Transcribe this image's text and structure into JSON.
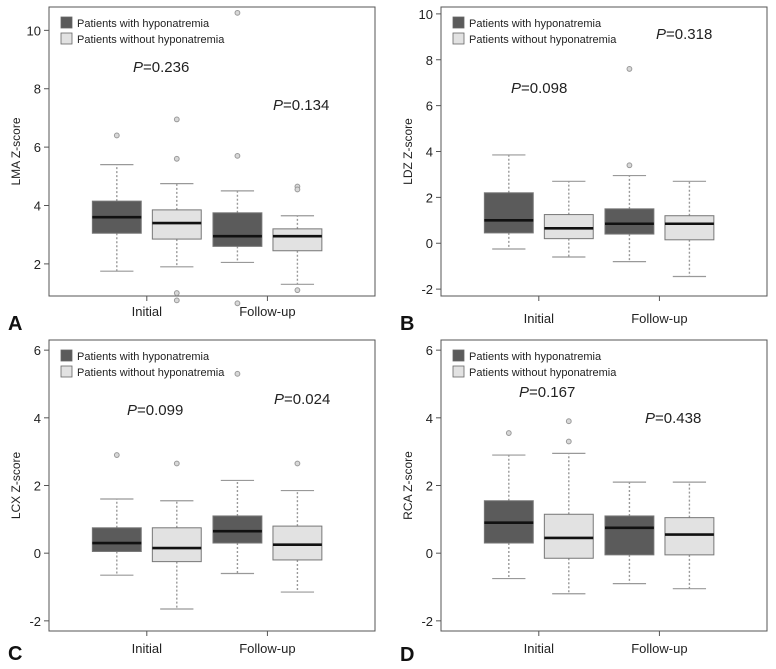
{
  "figure": {
    "colors": {
      "with": "#5b5b5b",
      "without": "#e2e2e2",
      "whisker": "#999999",
      "outlier": "#9a9a9a",
      "frame": "#555555"
    }
  },
  "chart_data": [
    {
      "id": "A",
      "panel_label": "A",
      "type": "boxplot",
      "ylabel": "LMA Z-score",
      "ylim": [
        0.9,
        10.8
      ],
      "yticks": [
        2,
        4,
        6,
        8,
        10
      ],
      "categories": [
        "Initial",
        "Follow-up"
      ],
      "legend": [
        "Patients with hyponatremia",
        "Patients without hyponatremia"
      ],
      "p_labels": [
        {
          "italic": "P",
          "rest": "=0.236"
        },
        {
          "italic": "P",
          "rest": "=0.134"
        }
      ],
      "series": [
        {
          "name": "Patients with hyponatremia",
          "boxes": [
            {
              "min": 1.75,
              "q1": 3.05,
              "median": 3.6,
              "q3": 4.15,
              "max": 5.4,
              "outliers": [
                6.4
              ]
            },
            {
              "min": 2.05,
              "q1": 2.6,
              "median": 2.95,
              "q3": 3.75,
              "max": 4.5,
              "outliers": [
                5.7,
                0.65,
                10.6
              ]
            }
          ]
        },
        {
          "name": "Patients without hyponatremia",
          "boxes": [
            {
              "min": 1.9,
              "q1": 2.85,
              "median": 3.4,
              "q3": 3.85,
              "max": 4.75,
              "outliers": [
                5.6,
                6.95,
                1.0,
                0.75
              ]
            },
            {
              "min": 1.3,
              "q1": 2.45,
              "median": 2.95,
              "q3": 3.2,
              "max": 3.65,
              "outliers": [
                4.65,
                4.55,
                1.1
              ]
            }
          ]
        }
      ]
    },
    {
      "id": "B",
      "panel_label": "B",
      "type": "boxplot",
      "ylabel": "LDZ Z-score",
      "ylim": [
        -2.3,
        10.3
      ],
      "yticks": [
        -2,
        0,
        2,
        4,
        6,
        8,
        10
      ],
      "categories": [
        "Initial",
        "Follow-up"
      ],
      "legend": [
        "Patients with hyponatremia",
        "Patients without hyponatremia"
      ],
      "p_labels": [
        {
          "italic": "P",
          "rest": "=0.098"
        },
        {
          "italic": "P",
          "rest": "=0.318"
        }
      ],
      "series": [
        {
          "name": "Patients with hyponatremia",
          "boxes": [
            {
              "min": -0.25,
              "q1": 0.45,
              "median": 1.0,
              "q3": 2.2,
              "max": 3.85,
              "outliers": []
            },
            {
              "min": -0.8,
              "q1": 0.4,
              "median": 0.85,
              "q3": 1.5,
              "max": 2.95,
              "outliers": [
                3.4,
                7.6
              ]
            }
          ]
        },
        {
          "name": "Patients without hyponatremia",
          "boxes": [
            {
              "min": -0.6,
              "q1": 0.2,
              "median": 0.65,
              "q3": 1.25,
              "max": 2.7,
              "outliers": []
            },
            {
              "min": -1.45,
              "q1": 0.15,
              "median": 0.85,
              "q3": 1.2,
              "max": 2.7,
              "outliers": []
            }
          ]
        }
      ]
    },
    {
      "id": "C",
      "panel_label": "C",
      "type": "boxplot",
      "ylabel": "LCX Z-score",
      "ylim": [
        -2.3,
        6.3
      ],
      "yticks": [
        -2,
        0,
        2,
        4,
        6
      ],
      "categories": [
        "Initial",
        "Follow-up"
      ],
      "legend": [
        "Patients with hyponatremia",
        "Patients without hyponatremia"
      ],
      "p_labels": [
        {
          "italic": "P",
          "rest": "=0.099"
        },
        {
          "italic": "P",
          "rest": "=0.024"
        }
      ],
      "series": [
        {
          "name": "Patients with hyponatremia",
          "boxes": [
            {
              "min": -0.65,
              "q1": 0.05,
              "median": 0.3,
              "q3": 0.75,
              "max": 1.6,
              "outliers": [
                2.9
              ]
            },
            {
              "min": -0.6,
              "q1": 0.3,
              "median": 0.65,
              "q3": 1.1,
              "max": 2.15,
              "outliers": [
                5.3
              ]
            }
          ]
        },
        {
          "name": "Patients without hyponatremia",
          "boxes": [
            {
              "min": -1.65,
              "q1": -0.25,
              "median": 0.15,
              "q3": 0.75,
              "max": 1.55,
              "outliers": [
                2.65
              ]
            },
            {
              "min": -1.15,
              "q1": -0.2,
              "median": 0.25,
              "q3": 0.8,
              "max": 1.85,
              "outliers": [
                2.65
              ]
            }
          ]
        }
      ]
    },
    {
      "id": "D",
      "panel_label": "D",
      "type": "boxplot",
      "ylabel": "RCA Z-score",
      "ylim": [
        -2.3,
        6.3
      ],
      "yticks": [
        -2,
        0,
        2,
        4,
        6
      ],
      "categories": [
        "Initial",
        "Follow-up"
      ],
      "legend": [
        "Patients with hyponatremia",
        "Patients without hyponatremia"
      ],
      "p_labels": [
        {
          "italic": "P",
          "rest": "=0.167"
        },
        {
          "italic": "P",
          "rest": "=0.438"
        }
      ],
      "series": [
        {
          "name": "Patients with hyponatremia",
          "boxes": [
            {
              "min": -0.75,
              "q1": 0.3,
              "median": 0.9,
              "q3": 1.55,
              "max": 2.9,
              "outliers": [
                3.55
              ]
            },
            {
              "min": -0.9,
              "q1": -0.05,
              "median": 0.75,
              "q3": 1.1,
              "max": 2.1,
              "outliers": []
            }
          ]
        },
        {
          "name": "Patients without hyponatremia",
          "boxes": [
            {
              "min": -1.2,
              "q1": -0.15,
              "median": 0.45,
              "q3": 1.15,
              "max": 2.95,
              "outliers": [
                3.3,
                3.9
              ]
            },
            {
              "min": -1.05,
              "q1": -0.05,
              "median": 0.55,
              "q3": 1.05,
              "max": 2.1,
              "outliers": []
            }
          ]
        }
      ]
    }
  ]
}
